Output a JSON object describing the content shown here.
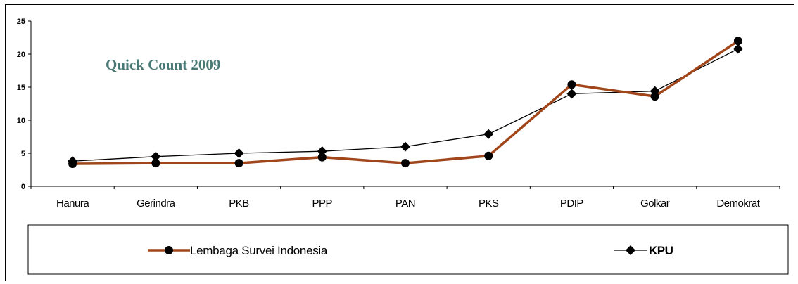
{
  "chart_data": {
    "type": "line",
    "categories": [
      "Hanura",
      "Gerindra",
      "PKB",
      "PPP",
      "PAN",
      "PKS",
      "PDIP",
      "Golkar",
      "Demokrat"
    ],
    "series": [
      {
        "name": "Lembaga Survei Indonesia",
        "values": [
          3.4,
          3.5,
          3.5,
          4.4,
          3.5,
          4.6,
          15.4,
          13.6,
          22.0
        ],
        "color": "#a0461a",
        "marker": "circle"
      },
      {
        "name": "KPU",
        "values": [
          3.8,
          4.5,
          5.0,
          5.3,
          6.0,
          7.9,
          14.0,
          14.4,
          20.8
        ],
        "color": "#000000",
        "marker": "diamond"
      }
    ],
    "ylim": [
      0,
      25
    ],
    "yticks": [
      "0",
      "5",
      "10",
      "15",
      "20",
      "25"
    ],
    "annotation": "Quick Count  2009",
    "grid": false,
    "legend_position": "bottom"
  }
}
